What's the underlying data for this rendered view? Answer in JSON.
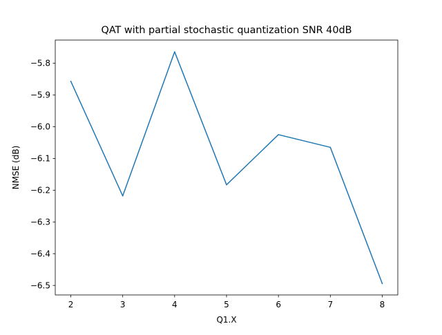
{
  "chart_data": {
    "type": "line",
    "title": "QAT with partial stochastic quantization SNR 40dB",
    "xlabel": "Q1.X",
    "ylabel": "NMSE (dB)",
    "x": [
      2,
      3,
      4,
      5,
      6,
      7,
      8
    ],
    "series": [
      {
        "values": [
          -5.857,
          -6.218,
          -5.764,
          -6.183,
          -6.025,
          -6.065,
          -6.494
        ],
        "color": "#1f77b4"
      }
    ],
    "xlim": [
      1.7,
      8.3
    ],
    "ylim": [
      -6.53,
      -5.727
    ],
    "xticks": [
      2,
      3,
      4,
      5,
      6,
      7,
      8
    ],
    "yticks": [
      -5.8,
      -5.9,
      -6.0,
      -6.1,
      -6.2,
      -6.3,
      -6.4,
      -6.5
    ],
    "xtick_labels": [
      "2",
      "3",
      "4",
      "5",
      "6",
      "7",
      "8"
    ],
    "ytick_labels": [
      "−5.8",
      "−5.9",
      "−6.0",
      "−6.1",
      "−6.2",
      "−6.3",
      "−6.4",
      "−6.5"
    ],
    "grid": false,
    "legend": "none"
  }
}
